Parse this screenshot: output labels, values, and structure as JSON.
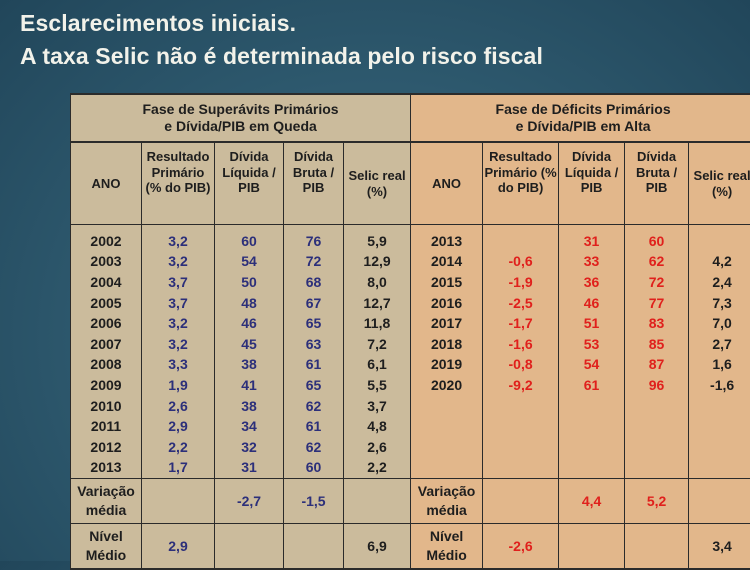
{
  "slide": {
    "title_line1": "Esclarecimentos iniciais.",
    "title_line2": "A taxa Selic não é determinada pelo risco fiscal"
  },
  "colors": {
    "left_bg": "#cbbb9c",
    "right_bg": "#e2b78b",
    "blue_values": "#2c2f7a",
    "red_values": "#e0201c"
  },
  "left": {
    "header_line1": "Fase de Superávits Primários",
    "header_line2": "e Dívida/PIB em Queda",
    "columns": [
      "ANO",
      "Resultado Primário (% do PIB)",
      "Dívida Líquida / PIB",
      "Dívida Bruta / PIB",
      "Selic real (%)"
    ],
    "rows": [
      [
        "2002",
        "3,2",
        "60",
        "76",
        "5,9"
      ],
      [
        "2003",
        "3,2",
        "54",
        "72",
        "12,9"
      ],
      [
        "2004",
        "3,7",
        "50",
        "68",
        "8,0"
      ],
      [
        "2005",
        "3,7",
        "48",
        "67",
        "12,7"
      ],
      [
        "2006",
        "3,2",
        "46",
        "65",
        "11,8"
      ],
      [
        "2007",
        "3,2",
        "45",
        "63",
        "7,2"
      ],
      [
        "2008",
        "3,3",
        "38",
        "61",
        "6,1"
      ],
      [
        "2009",
        "1,9",
        "41",
        "65",
        "5,5"
      ],
      [
        "2010",
        "2,6",
        "38",
        "62",
        "3,7"
      ],
      [
        "2011",
        "2,9",
        "34",
        "61",
        "4,8"
      ],
      [
        "2012",
        "2,2",
        "32",
        "62",
        "2,6"
      ],
      [
        "2013",
        "1,7",
        "31",
        "60",
        "2,2"
      ]
    ],
    "variacao": [
      "Variação média",
      "",
      "-2,7",
      "-1,5",
      ""
    ],
    "nivel": [
      "Nível Médio",
      "2,9",
      "",
      "",
      "6,9"
    ]
  },
  "right": {
    "header_line1": "Fase de Déficits Primários",
    "header_line2": "e Dívida/PIB em Alta",
    "columns": [
      "ANO",
      "Resultado Primário (% do PIB)",
      "Dívida Líquida / PIB",
      "Dívida Bruta / PIB",
      "Selic real (%)"
    ],
    "rows": [
      [
        "2013",
        "",
        "31",
        "60",
        ""
      ],
      [
        "2014",
        "-0,6",
        "33",
        "62",
        "4,2"
      ],
      [
        "2015",
        "-1,9",
        "36",
        "72",
        "2,4"
      ],
      [
        "2016",
        "-2,5",
        "46",
        "77",
        "7,3"
      ],
      [
        "2017",
        "-1,7",
        "51",
        "83",
        "7,0"
      ],
      [
        "2018",
        "-1,6",
        "53",
        "85",
        "2,7"
      ],
      [
        "2019",
        "-0,8",
        "54",
        "87",
        "1,6"
      ],
      [
        "2020",
        "-9,2",
        "61",
        "96",
        "-1,6"
      ]
    ],
    "variacao": [
      "Variação média",
      "",
      "4,4",
      "5,2",
      ""
    ],
    "nivel": [
      "Nível Médio",
      "-2,6",
      "",
      "",
      "3,4"
    ]
  }
}
